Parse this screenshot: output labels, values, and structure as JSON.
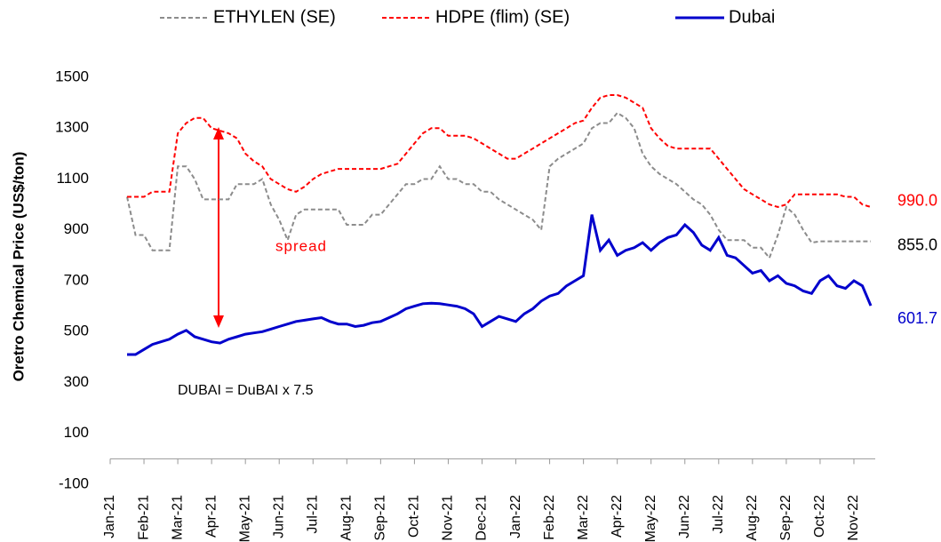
{
  "chart_data": {
    "type": "line",
    "y_label": "Oretro Chemical Price (US$/ton)",
    "annotations": [
      "spread",
      "DUBAI = DuBAI x 7.5"
    ],
    "categories": [
      "Jan-21",
      null,
      null,
      null,
      "Feb-21",
      null,
      null,
      null,
      "Mar-21",
      null,
      null,
      null,
      "Apr-21",
      null,
      null,
      null,
      "May-21",
      null,
      null,
      null,
      "Jun-21",
      null,
      null,
      null,
      "Jul-21",
      null,
      null,
      null,
      "Aug-21",
      null,
      null,
      null,
      "Sep-21",
      null,
      null,
      null,
      "Oct-21",
      null,
      null,
      null,
      "Nov-21",
      null,
      null,
      null,
      "Dec-21",
      null,
      null,
      null,
      "Jan-22",
      null,
      null,
      null,
      "Feb-22",
      null,
      null,
      null,
      "Mar-22",
      null,
      null,
      null,
      "Apr-22",
      null,
      null,
      null,
      "May-22",
      null,
      null,
      null,
      "Jun-22",
      null,
      null,
      null,
      "Jul-22",
      null,
      null,
      null,
      "Aug-22",
      null,
      null,
      null,
      "Sep-22",
      null,
      null,
      null,
      "Oct-22",
      null,
      null,
      null,
      "Nov-22",
      null,
      null
    ],
    "ylim": [
      -100,
      1500
    ],
    "yticks": [
      -100,
      100,
      300,
      500,
      700,
      900,
      1100,
      1300,
      1500
    ],
    "grid": false,
    "legend": "top",
    "series": [
      {
        "name": "ETHYLEN (SE)",
        "color": "#8c8c8c",
        "dash": true,
        "end_label": "855.0",
        "values": [
          null,
          null,
          1030,
          880,
          880,
          820,
          820,
          820,
          1150,
          1150,
          1100,
          1020,
          1020,
          1020,
          1020,
          1080,
          1080,
          1080,
          1100,
          1000,
          940,
          860,
          960,
          980,
          980,
          980,
          980,
          980,
          920,
          920,
          920,
          960,
          960,
          1000,
          1040,
          1080,
          1080,
          1100,
          1100,
          1150,
          1100,
          1100,
          1080,
          1080,
          1050,
          1050,
          1020,
          1000,
          980,
          960,
          940,
          900,
          1150,
          1180,
          1200,
          1220,
          1240,
          1300,
          1320,
          1320,
          1360,
          1340,
          1300,
          1200,
          1150,
          1120,
          1100,
          1080,
          1050,
          1020,
          1000,
          960,
          900,
          860,
          860,
          860,
          830,
          830,
          790,
          880,
          990,
          960,
          900,
          850,
          855,
          855,
          855,
          855,
          855,
          855,
          855
        ]
      },
      {
        "name": "HDPE (flim) (SE)",
        "color": "#ff0000",
        "dash": true,
        "end_label": "990.0",
        "values": [
          null,
          null,
          1030,
          1030,
          1030,
          1050,
          1050,
          1050,
          1280,
          1320,
          1340,
          1340,
          1300,
          1290,
          1280,
          1260,
          1200,
          1170,
          1150,
          1100,
          1080,
          1060,
          1050,
          1070,
          1100,
          1120,
          1130,
          1140,
          1140,
          1140,
          1140,
          1140,
          1140,
          1150,
          1160,
          1200,
          1240,
          1280,
          1300,
          1300,
          1270,
          1270,
          1270,
          1260,
          1240,
          1220,
          1200,
          1180,
          1180,
          1200,
          1220,
          1240,
          1260,
          1280,
          1300,
          1320,
          1330,
          1380,
          1420,
          1430,
          1430,
          1420,
          1400,
          1380,
          1300,
          1260,
          1230,
          1220,
          1220,
          1220,
          1220,
          1220,
          1180,
          1140,
          1100,
          1060,
          1040,
          1020,
          1000,
          990,
          1000,
          1040,
          1040,
          1040,
          1040,
          1040,
          1040,
          1030,
          1030,
          1000,
          990
        ]
      },
      {
        "name": "Dubai",
        "color": "#0000cc",
        "dash": false,
        "end_label": "601.7",
        "values": [
          null,
          null,
          410,
          410,
          430,
          450,
          460,
          470,
          490,
          505,
          480,
          470,
          460,
          455,
          470,
          480,
          490,
          495,
          500,
          510,
          520,
          530,
          540,
          545,
          550,
          555,
          540,
          530,
          530,
          520,
          525,
          535,
          540,
          555,
          570,
          590,
          600,
          610,
          612,
          610,
          605,
          600,
          590,
          570,
          520,
          540,
          560,
          550,
          540,
          570,
          590,
          620,
          640,
          650,
          680,
          700,
          720,
          960,
          820,
          860,
          800,
          820,
          830,
          850,
          820,
          850,
          870,
          880,
          920,
          890,
          840,
          820,
          870,
          800,
          790,
          760,
          730,
          740,
          700,
          720,
          690,
          680,
          660,
          650,
          700,
          720,
          680,
          670,
          700,
          680,
          601.7
        ]
      }
    ]
  }
}
